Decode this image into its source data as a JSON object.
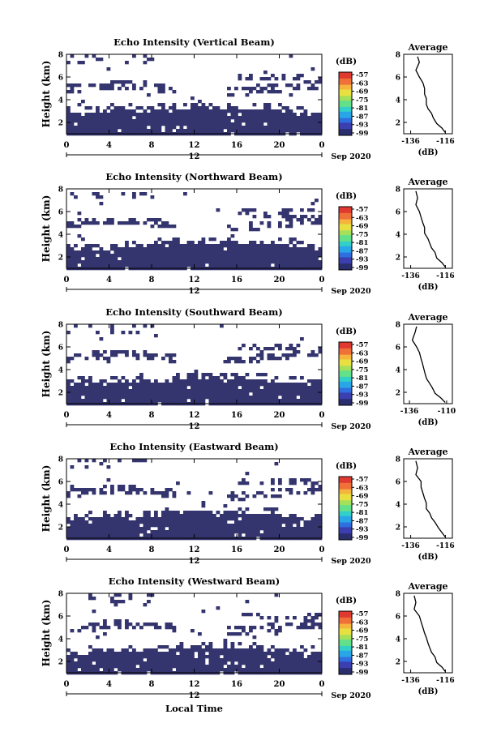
{
  "figure": {
    "shared_xlabel": "Local Time",
    "date_label": "Sep 2020",
    "colorbar_unit": "(dB)",
    "colorbar_ticks": [
      "-57",
      "-63",
      "-69",
      "-75",
      "-81",
      "-87",
      "-93",
      "-99"
    ],
    "colormap": [
      "#2a2e6e",
      "#3b3fb0",
      "#2f6fe0",
      "#29a6e8",
      "#33d0c8",
      "#63e08a",
      "#a6e05a",
      "#e8e040",
      "#f5b43c",
      "#f0703a",
      "#e03a30"
    ],
    "main_xticks": [
      "0",
      "4",
      "8",
      "12",
      "16",
      "20",
      "0"
    ],
    "main_yticks": [
      "2",
      "4",
      "6",
      "8"
    ],
    "day_marker": "12",
    "avg_title": "Average",
    "avg_xlabel": "(dB)",
    "avg_yticks": [
      "2",
      "4",
      "6",
      "8"
    ]
  },
  "panels": [
    {
      "title": "Echo Intensity (Vertical Beam)",
      "ylabel": "Height (km)",
      "avg_xticks": [
        "-136",
        "-116"
      ]
    },
    {
      "title": "Echo Intensity (Northward Beam)",
      "ylabel": "Height (km)",
      "avg_xticks": [
        "-136",
        "-116"
      ]
    },
    {
      "title": "Echo Intensity (Southward Beam)",
      "ylabel": "Height (km)",
      "avg_xticks": [
        "-136",
        "-110"
      ]
    },
    {
      "title": "Echo Intensity (Eastward Beam)",
      "ylabel": "Height (km)",
      "avg_xticks": [
        "-136",
        "-116"
      ]
    },
    {
      "title": "Echo Intensity (Westward Beam)",
      "ylabel": "Height (km)",
      "avg_xticks": [
        "-136",
        "-116"
      ]
    }
  ],
  "chart_data": [
    {
      "type": "heatmap",
      "title": "Echo Intensity (Vertical Beam)",
      "xlabel": "",
      "ylabel": "Height (km)",
      "xlim": [
        0,
        24
      ],
      "ylim": [
        1,
        8
      ],
      "zlim": [
        -99,
        -57
      ],
      "z_unit": "dB",
      "description_fields": {
        "low_layer_top_km": [
          3.0,
          3.1,
          3.2,
          3.1,
          3.3,
          3.4,
          3.5,
          3.4,
          3.3,
          3.3,
          3.0,
          2.8
        ],
        "mid_layer_km": 5.1
      }
    },
    {
      "type": "line",
      "title": "Average",
      "xlabel": "(dB)",
      "ylabel": "",
      "xlim": [
        -140,
        -112
      ],
      "ylim": [
        1,
        8
      ],
      "x": [
        -132,
        -131,
        -133,
        -131,
        -129,
        -128,
        -128,
        -127,
        -127,
        -126,
        -124,
        -123,
        -121,
        -118,
        -116
      ],
      "y": [
        7.8,
        7.3,
        6.6,
        6.0,
        5.5,
        5.0,
        4.5,
        4.1,
        3.6,
        3.2,
        2.8,
        2.4,
        1.9,
        1.5,
        1.1
      ]
    },
    {
      "type": "heatmap",
      "title": "Echo Intensity (Northward Beam)",
      "xlabel": "",
      "ylabel": "Height (km)",
      "xlim": [
        0,
        24
      ],
      "ylim": [
        1,
        8
      ],
      "zlim": [
        -99,
        -57
      ],
      "z_unit": "dB",
      "description_fields": {
        "low_layer_top_km": [
          2.7,
          2.8,
          3.0,
          3.0,
          3.2,
          3.3,
          3.4,
          3.5,
          3.3,
          3.2,
          3.0,
          2.9
        ],
        "mid_layer_km": 5.0
      }
    },
    {
      "type": "line",
      "title": "Average",
      "xlabel": "(dB)",
      "ylabel": "",
      "xlim": [
        -140,
        -112
      ],
      "ylim": [
        1,
        8
      ],
      "x": [
        -133,
        -132,
        -133,
        -131,
        -130,
        -129,
        -128,
        -128,
        -126,
        -125,
        -124,
        -122,
        -121,
        -118,
        -116
      ],
      "y": [
        7.8,
        7.2,
        6.6,
        6.0,
        5.5,
        5.0,
        4.6,
        4.1,
        3.6,
        3.2,
        2.8,
        2.4,
        1.9,
        1.5,
        1.1
      ]
    },
    {
      "type": "heatmap",
      "title": "Echo Intensity (Southward Beam)",
      "xlabel": "",
      "ylabel": "Height (km)",
      "xlim": [
        0,
        24
      ],
      "ylim": [
        1,
        8
      ],
      "zlim": [
        -99,
        -57
      ],
      "z_unit": "dB",
      "description_fields": {
        "low_layer_top_km": [
          2.9,
          3.0,
          3.1,
          3.1,
          3.2,
          3.3,
          3.4,
          3.4,
          3.3,
          3.2,
          3.0,
          2.8
        ],
        "mid_layer_km": 5.2
      }
    },
    {
      "type": "line",
      "title": "Average",
      "xlabel": "(dB)",
      "ylabel": "",
      "xlim": [
        -140,
        -106
      ],
      "ylim": [
        1,
        8
      ],
      "x": [
        -131,
        -132,
        -134,
        -131,
        -129,
        -128,
        -127,
        -126,
        -125,
        -124,
        -122,
        -120,
        -118,
        -114,
        -111
      ],
      "y": [
        7.8,
        7.3,
        6.6,
        6.0,
        5.5,
        5.0,
        4.6,
        4.1,
        3.6,
        3.2,
        2.8,
        2.4,
        1.9,
        1.5,
        1.1
      ]
    },
    {
      "type": "heatmap",
      "title": "Echo Intensity (Eastward Beam)",
      "xlabel": "",
      "ylabel": "Height (km)",
      "xlim": [
        0,
        24
      ],
      "ylim": [
        1,
        8
      ],
      "zlim": [
        -99,
        -57
      ],
      "z_unit": "dB",
      "description_fields": {
        "low_layer_top_km": [
          2.7,
          2.9,
          3.1,
          3.0,
          3.2,
          3.4,
          3.5,
          3.4,
          3.3,
          3.3,
          3.0,
          2.8
        ],
        "mid_layer_km": 5.1
      }
    },
    {
      "type": "line",
      "title": "Average",
      "xlabel": "(dB)",
      "ylabel": "",
      "xlim": [
        -140,
        -112
      ],
      "ylim": [
        1,
        8
      ],
      "x": [
        -133,
        -132,
        -133,
        -130,
        -130,
        -129,
        -128,
        -127,
        -127,
        -125,
        -124,
        -122,
        -120,
        -118,
        -116
      ],
      "y": [
        7.8,
        7.2,
        6.6,
        6.0,
        5.5,
        5.0,
        4.5,
        4.1,
        3.6,
        3.2,
        2.8,
        2.4,
        1.9,
        1.5,
        1.1
      ]
    },
    {
      "type": "heatmap",
      "title": "Echo Intensity (Westward Beam)",
      "xlabel": "",
      "ylabel": "Height (km)",
      "xlim": [
        0,
        24
      ],
      "ylim": [
        1,
        8
      ],
      "zlim": [
        -99,
        -57
      ],
      "z_unit": "dB",
      "description_fields": {
        "low_layer_top_km": [
          2.8,
          2.9,
          3.0,
          3.1,
          3.2,
          3.3,
          3.4,
          3.4,
          3.3,
          3.2,
          3.0,
          2.9
        ],
        "mid_layer_km": 5.1
      }
    },
    {
      "type": "line",
      "title": "Average",
      "xlabel": "(dB)",
      "ylabel": "",
      "xlim": [
        -140,
        -112
      ],
      "ylim": [
        1,
        8
      ],
      "x": [
        -134,
        -133,
        -134,
        -131,
        -130,
        -129,
        -128,
        -127,
        -126,
        -125,
        -124,
        -122,
        -121,
        -118,
        -116
      ],
      "y": [
        7.8,
        7.2,
        6.6,
        6.0,
        5.5,
        5.0,
        4.5,
        4.1,
        3.6,
        3.2,
        2.8,
        2.4,
        1.9,
        1.5,
        1.1
      ]
    }
  ]
}
